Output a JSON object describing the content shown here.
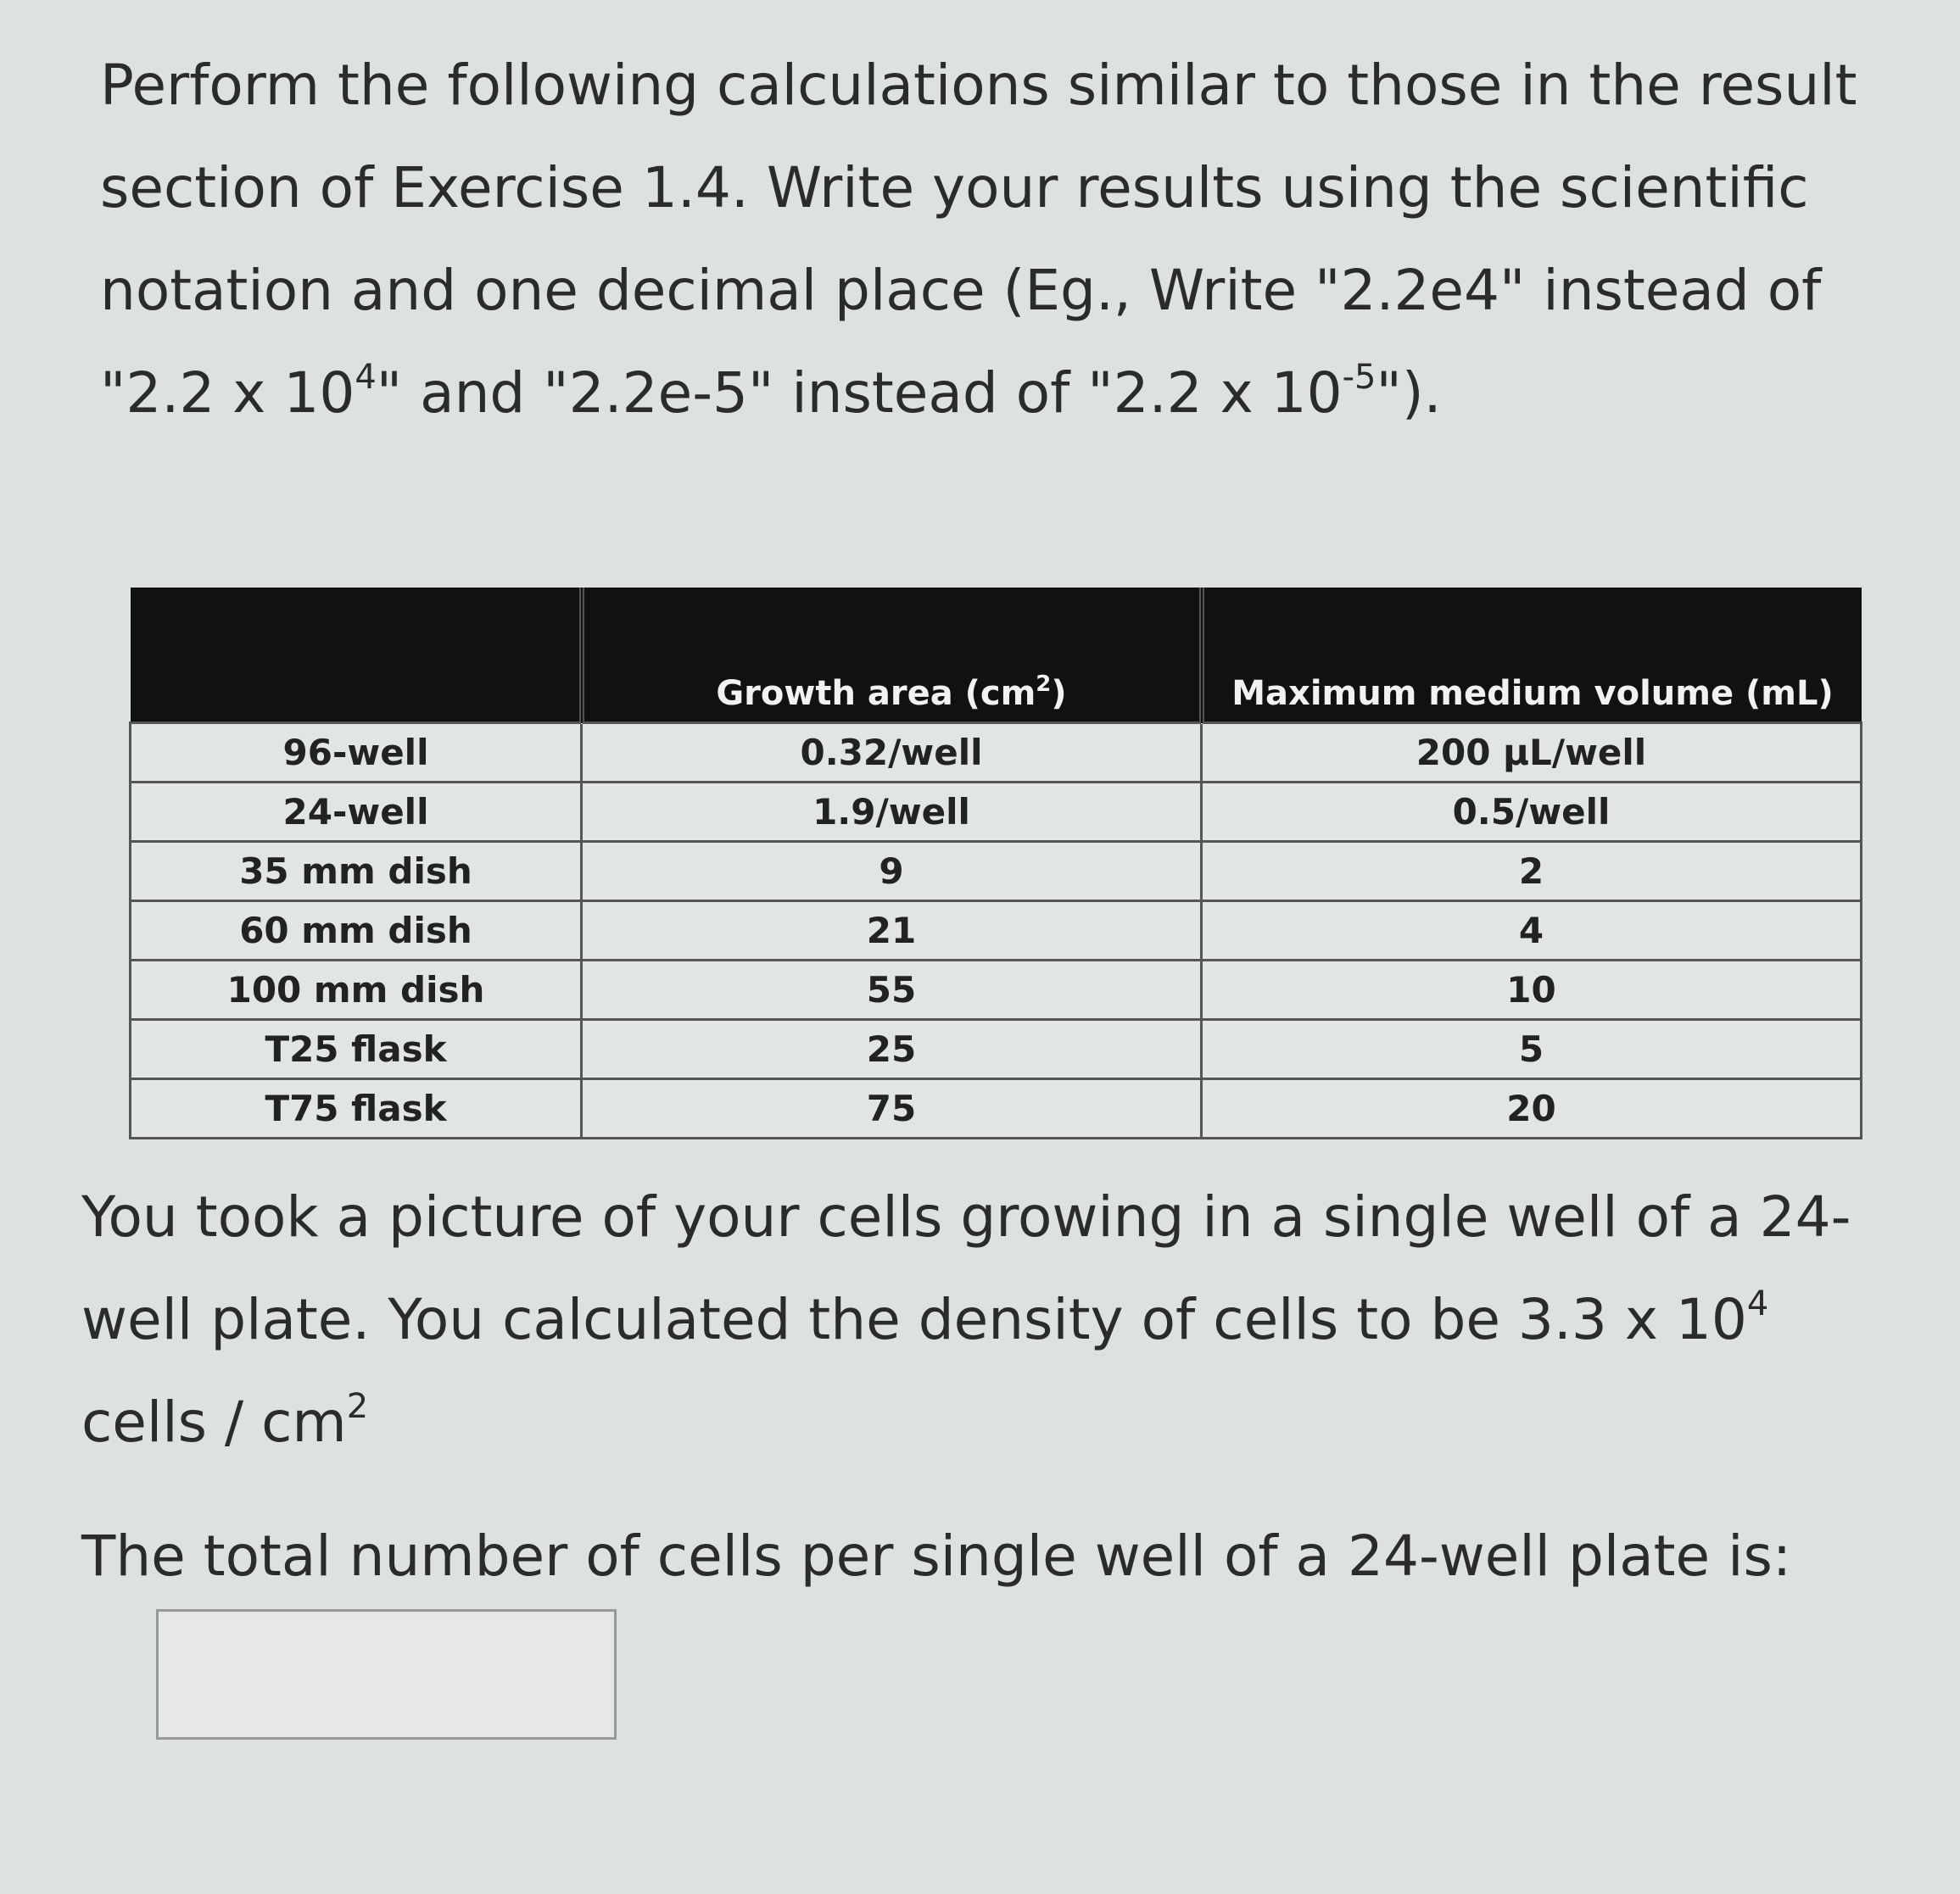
{
  "intro": {
    "text_1": "Perform the following calculations similar to those in the result section of Exercise 1.4. Write your results using the scientific notation and one decimal place (Eg., Write \"2.2e4\" instead of \"2.2 x 10",
    "sup_1": "4",
    "text_2": "\" and \"2.2e-5\" instead of \"2.2 x 10",
    "sup_2": "-5",
    "text_3": "\")."
  },
  "table": {
    "headers": {
      "growth_area": {
        "text": "Growth area (cm",
        "sup": "2",
        "end": ")"
      },
      "max_volume": "Maximum medium volume (mL)"
    },
    "rows": [
      [
        "96-well",
        "0.32/well",
        "200 µL/well"
      ],
      [
        "24-well",
        "1.9/well",
        "0.5/well"
      ],
      [
        "35 mm dish",
        "9",
        "2"
      ],
      [
        "60 mm dish",
        "21",
        "4"
      ],
      [
        "100 mm dish",
        "55",
        "10"
      ],
      [
        "T25 flask",
        "25",
        "5"
      ],
      [
        "T75 flask",
        "75",
        "20"
      ]
    ]
  },
  "question": {
    "text_1": "You took a picture of your cells growing in a single well of a 24-well plate. You calculated the density of cells to be 3.3 x 10",
    "sup_1": "4",
    "text_2": " cells / cm",
    "sup_2": "2"
  },
  "prompt": "The total number of cells per single well of a 24-well plate is:"
}
